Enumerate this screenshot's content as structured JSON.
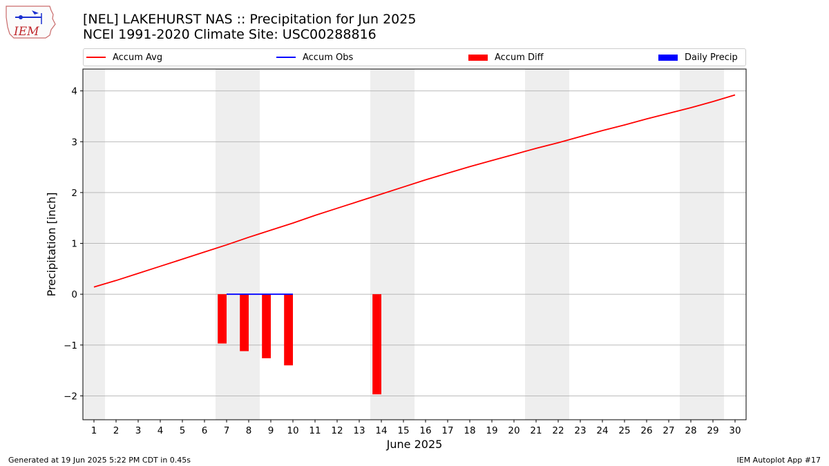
{
  "header": {
    "title_line1": "[NEL] LAKEHURST NAS :: Precipitation for Jun 2025",
    "title_line2": "NCEI 1991-2020 Climate Site: USC00288816",
    "logo_text": "IEM"
  },
  "legend": {
    "items": [
      {
        "label": "Accum Avg",
        "color": "#ff0000",
        "kind": "line"
      },
      {
        "label": "Accum Obs",
        "color": "#0000ff",
        "kind": "line"
      },
      {
        "label": "Accum Diff",
        "color": "#ff0000",
        "kind": "box"
      },
      {
        "label": "Daily Precip",
        "color": "#0000ff",
        "kind": "box"
      }
    ]
  },
  "footer": {
    "left": "Generated at 19 Jun 2025 5:22 PM CDT in 0.45s",
    "right": "IEM Autoplot App #17"
  },
  "chart_data": {
    "type": "line",
    "xlabel": "June 2025",
    "ylabel": "Precipitation [inch]",
    "x_categories": [
      "1",
      "2",
      "3",
      "4",
      "5",
      "6",
      "7",
      "8",
      "9",
      "10",
      "11",
      "12",
      "13",
      "14",
      "15",
      "16",
      "17",
      "18",
      "19",
      "20",
      "21",
      "22",
      "23",
      "24",
      "25",
      "26",
      "27",
      "28",
      "29",
      "30"
    ],
    "xlim": [
      0.5,
      30.5
    ],
    "ylim": [
      -2.47,
      4.43
    ],
    "yticks": [
      -2,
      -1,
      0,
      1,
      2,
      3,
      4
    ],
    "ytick_labels": [
      "−2",
      "−1",
      "0",
      "1",
      "2",
      "3",
      "4"
    ],
    "grid": "horizontal",
    "legend_position": "top",
    "weekend_shading": [
      [
        0.5,
        1.5
      ],
      [
        6.5,
        8.5
      ],
      [
        13.5,
        15.5
      ],
      [
        20.5,
        22.5
      ],
      [
        27.5,
        29.5
      ]
    ],
    "shade_color": "#eeeeee",
    "series": [
      {
        "name": "Accum Avg",
        "kind": "line",
        "color": "#ff0000",
        "x": [
          1,
          2,
          3,
          4,
          5,
          6,
          7,
          8,
          9,
          10,
          11,
          12,
          13,
          14,
          15,
          16,
          17,
          18,
          19,
          20,
          21,
          22,
          23,
          24,
          25,
          26,
          27,
          28,
          29,
          30
        ],
        "values": [
          0.14,
          0.27,
          0.41,
          0.55,
          0.69,
          0.83,
          0.97,
          1.12,
          1.26,
          1.4,
          1.55,
          1.69,
          1.83,
          1.97,
          2.11,
          2.25,
          2.38,
          2.51,
          2.63,
          2.75,
          2.87,
          2.98,
          3.1,
          3.22,
          3.33,
          3.45,
          3.56,
          3.67,
          3.79,
          3.92
        ]
      },
      {
        "name": "Accum Obs",
        "kind": "line",
        "color": "#0000ff",
        "x": [
          7,
          8,
          9,
          10
        ],
        "values": [
          0,
          0,
          0,
          0
        ]
      },
      {
        "name": "Accum Diff",
        "kind": "bar",
        "color": "#ff0000",
        "x": [
          7,
          8,
          9,
          10,
          14
        ],
        "values": [
          -0.97,
          -1.12,
          -1.26,
          -1.4,
          -1.97
        ]
      },
      {
        "name": "Daily Precip",
        "kind": "bar",
        "color": "#0000ff",
        "x": [],
        "values": []
      }
    ]
  }
}
